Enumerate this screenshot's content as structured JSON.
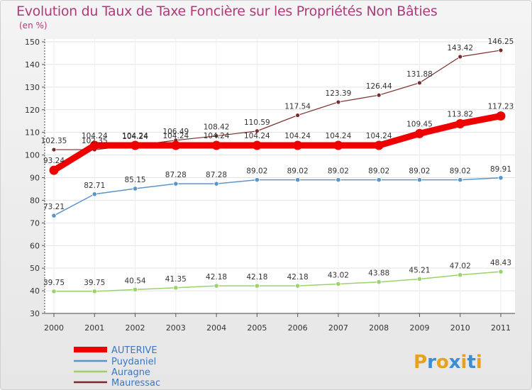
{
  "title": "Evolution du Taux de Taxe Foncière sur les Propriétés Non Bâties",
  "subtitle": "(en %)",
  "logo": {
    "letters": [
      "P",
      "r",
      "o",
      "x",
      "i",
      "t",
      "i"
    ],
    "colors": [
      "#e8a21a",
      "#3a8ed8",
      "#e8a21a",
      "#3a8ed8",
      "#e8a21a",
      "#3a8ed8",
      "#e8a21a"
    ]
  },
  "chart_data": {
    "type": "line",
    "categories": [
      "2000",
      "2001",
      "2002",
      "2003",
      "2004",
      "2005",
      "2006",
      "2007",
      "2008",
      "2009",
      "2010",
      "2011"
    ],
    "ylim": [
      30,
      150
    ],
    "yticks": [
      30,
      40,
      50,
      60,
      70,
      80,
      90,
      100,
      110,
      120,
      130,
      140,
      150
    ],
    "grid": true,
    "legend_position": "bottom-left",
    "series": [
      {
        "name": "Mauressac",
        "color": "#7a2a2a",
        "values": [
          102.35,
          102.35,
          104.24,
          106.49,
          108.42,
          110.59,
          117.54,
          123.39,
          126.44,
          131.88,
          143.42,
          146.25
        ],
        "labels": [
          "102.35",
          "102.35",
          "104.24",
          "106.49",
          "108.42",
          "110.59",
          "117.54",
          "123.39",
          "126.44",
          "131.88",
          "143.42",
          "146.25"
        ]
      },
      {
        "name": "AUTERIVE",
        "color": "#ee0000",
        "values": [
          93.24,
          104.24,
          104.24,
          104.24,
          104.24,
          104.24,
          104.24,
          104.24,
          104.24,
          109.45,
          113.82,
          117.23
        ],
        "labels": [
          "93.24",
          "104.24",
          "104.24",
          "104.24",
          "104.24",
          "104.24",
          "104.24",
          "104.24",
          "104.24",
          "109.45",
          "113.82",
          "117.23"
        ]
      },
      {
        "name": "Puydaniel",
        "color": "#5b95c8",
        "values": [
          73.21,
          82.71,
          85.15,
          87.28,
          87.28,
          89.02,
          89.02,
          89.02,
          89.02,
          89.02,
          89.02,
          89.91
        ],
        "labels": [
          "73.21",
          "82.71",
          "85.15",
          "87.28",
          "87.28",
          "89.02",
          "89.02",
          "89.02",
          "89.02",
          "89.02",
          "89.02",
          "89.91"
        ]
      },
      {
        "name": "Auragne",
        "color": "#99d36a",
        "values": [
          39.75,
          39.75,
          40.54,
          41.35,
          42.18,
          42.18,
          42.18,
          43.02,
          43.88,
          45.21,
          47.02,
          48.43
        ],
        "labels": [
          "39.75",
          "39.75",
          "40.54",
          "41.35",
          "42.18",
          "42.18",
          "42.18",
          "43.02",
          "43.88",
          "45.21",
          "47.02",
          "48.43"
        ]
      }
    ],
    "legend_order": [
      "AUTERIVE",
      "Puydaniel",
      "Auragne",
      "Mauressac"
    ]
  }
}
